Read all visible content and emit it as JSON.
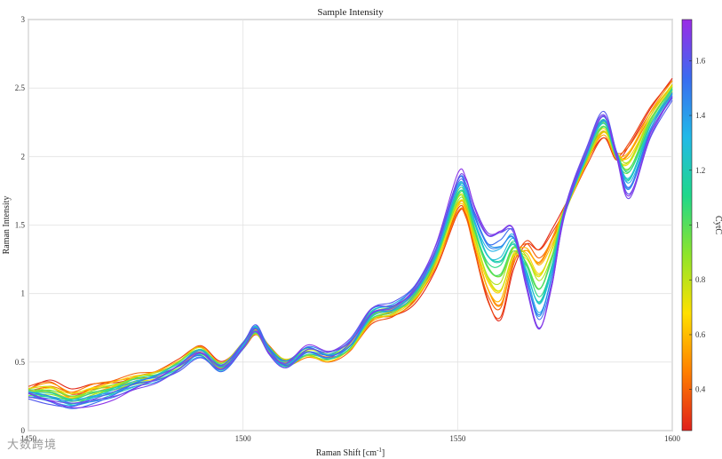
{
  "chart_data": {
    "type": "line",
    "title": "Sample Intensity",
    "xlabel": "Raman Shift [cm",
    "xlabel_sup": "-1",
    "xlabel_suffix": "]",
    "ylabel": "Raman Intensity",
    "xlim": [
      1450,
      1600
    ],
    "ylim": [
      0,
      3
    ],
    "xticks": [
      1450,
      1500,
      1550,
      1600
    ],
    "xtick_labels": [
      "1450",
      "1500",
      "1550",
      "1600"
    ],
    "yticks": [
      0,
      0.5,
      1,
      1.5,
      2,
      2.5,
      3
    ],
    "ytick_labels": [
      "0",
      "0.5",
      "1",
      "1.5",
      "2",
      "2.5",
      "3"
    ],
    "grid": true,
    "colorbar": {
      "label": "CytC",
      "range": [
        0.25,
        1.75
      ],
      "ticks": [
        0.4,
        0.6,
        0.8,
        1,
        1.2,
        1.4,
        1.6
      ],
      "tick_labels": [
        "0.4",
        "0.6",
        "0.8",
        "1",
        "1.2",
        "1.4",
        "1.6"
      ],
      "colormap": [
        "#e0201b",
        "#ff7f00",
        "#ffe000",
        "#8ee52b",
        "#1fd88a",
        "#21b9e8",
        "#3a6cf0",
        "#9b2be6"
      ]
    },
    "series_count": 24,
    "concentration_range": [
      0.27,
      1.72
    ],
    "x": [
      1450,
      1455,
      1460,
      1465,
      1470,
      1475,
      1480,
      1485,
      1490,
      1495,
      1500,
      1503,
      1506,
      1510,
      1515,
      1520,
      1525,
      1530,
      1535,
      1540,
      1545,
      1550,
      1552,
      1554,
      1557,
      1560,
      1563,
      1566,
      1569,
      1572,
      1575,
      1580,
      1584,
      1587,
      1590,
      1595,
      1600
    ],
    "low_curve": [
      0.3,
      0.35,
      0.28,
      0.33,
      0.36,
      0.4,
      0.42,
      0.5,
      0.6,
      0.48,
      0.62,
      0.72,
      0.6,
      0.5,
      0.55,
      0.52,
      0.6,
      0.8,
      0.85,
      0.95,
      1.2,
      1.58,
      1.55,
      1.3,
      0.95,
      0.82,
      1.2,
      1.38,
      1.32,
      1.45,
      1.62,
      1.95,
      2.15,
      2.0,
      2.1,
      2.35,
      2.55
    ],
    "high_curve": [
      0.25,
      0.2,
      0.17,
      0.2,
      0.25,
      0.32,
      0.37,
      0.45,
      0.55,
      0.45,
      0.62,
      0.75,
      0.58,
      0.48,
      0.6,
      0.56,
      0.65,
      0.88,
      0.92,
      1.05,
      1.35,
      1.85,
      1.82,
      1.62,
      1.45,
      1.48,
      1.48,
      1.05,
      0.72,
      1.05,
      1.6,
      2.05,
      2.32,
      2.02,
      1.7,
      2.15,
      2.42
    ]
  },
  "watermark": "大数跨境"
}
